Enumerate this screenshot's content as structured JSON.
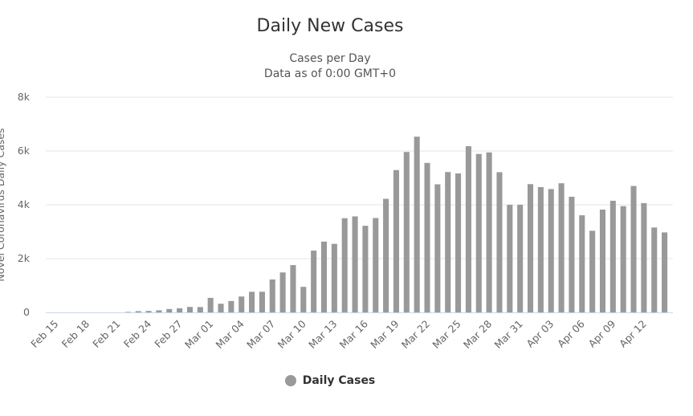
{
  "colors": {
    "bar": "#999999",
    "grid": "#e6e6e6",
    "axis": "#ccd6eb"
  },
  "chart_data": {
    "type": "bar",
    "title": "Daily New Cases",
    "subtitle_lines": [
      "Cases per Day",
      "Data as of 0:00 GMT+0"
    ],
    "ylabel": "Novel Coronavirus Daily Cases",
    "ylim": [
      0,
      8000
    ],
    "yticks": [
      {
        "value": 0,
        "label": "0"
      },
      {
        "value": 2000,
        "label": "2k"
      },
      {
        "value": 4000,
        "label": "4k"
      },
      {
        "value": 6000,
        "label": "6k"
      },
      {
        "value": 8000,
        "label": "8k"
      }
    ],
    "grid": true,
    "legend_position": "bottom-center",
    "categories": [
      "Feb 15",
      "Feb 16",
      "Feb 17",
      "Feb 18",
      "Feb 19",
      "Feb 20",
      "Feb 21",
      "Feb 22",
      "Feb 23",
      "Feb 24",
      "Feb 25",
      "Feb 26",
      "Feb 27",
      "Feb 28",
      "Feb 29",
      "Mar 01",
      "Mar 02",
      "Mar 03",
      "Mar 04",
      "Mar 05",
      "Mar 06",
      "Mar 07",
      "Mar 08",
      "Mar 09",
      "Mar 10",
      "Mar 11",
      "Mar 12",
      "Mar 13",
      "Mar 14",
      "Mar 15",
      "Mar 16",
      "Mar 17",
      "Mar 18",
      "Mar 19",
      "Mar 20",
      "Mar 21",
      "Mar 22",
      "Mar 23",
      "Mar 24",
      "Mar 25",
      "Mar 26",
      "Mar 27",
      "Mar 28",
      "Mar 29",
      "Mar 30",
      "Mar 31",
      "Apr 01",
      "Apr 02",
      "Apr 03",
      "Apr 04",
      "Apr 05",
      "Apr 06",
      "Apr 07",
      "Apr 08",
      "Apr 09",
      "Apr 10",
      "Apr 11",
      "Apr 12",
      "Apr 13",
      "Apr 14"
    ],
    "xtick_labels": [
      "Feb 15",
      "Feb 18",
      "Feb 21",
      "Feb 24",
      "Feb 27",
      "Mar 01",
      "Mar 04",
      "Mar 07",
      "Mar 10",
      "Mar 13",
      "Mar 16",
      "Mar 19",
      "Mar 22",
      "Mar 25",
      "Mar 28",
      "Mar 31",
      "Apr 03",
      "Apr 06",
      "Apr 09",
      "Apr 12"
    ],
    "series": [
      {
        "name": "Daily Cases",
        "values": [
          0,
          0,
          0,
          0,
          0,
          0,
          0,
          18,
          46,
          54,
          78,
          126,
          155,
          204,
          200,
          540,
          322,
          423,
          591,
          766,
          768,
          1224,
          1486,
          1758,
          950,
          2297,
          2631,
          2548,
          3501,
          3568,
          3220,
          3507,
          4222,
          5290,
          5963,
          6532,
          5558,
          4761,
          5217,
          5165,
          6177,
          5889,
          5947,
          5211,
          4000,
          4000,
          4768,
          4657,
          4585,
          4800,
          4299,
          3610,
          3034,
          3821,
          4148,
          3950,
          4700,
          4062,
          3155,
          2973
        ]
      }
    ]
  }
}
